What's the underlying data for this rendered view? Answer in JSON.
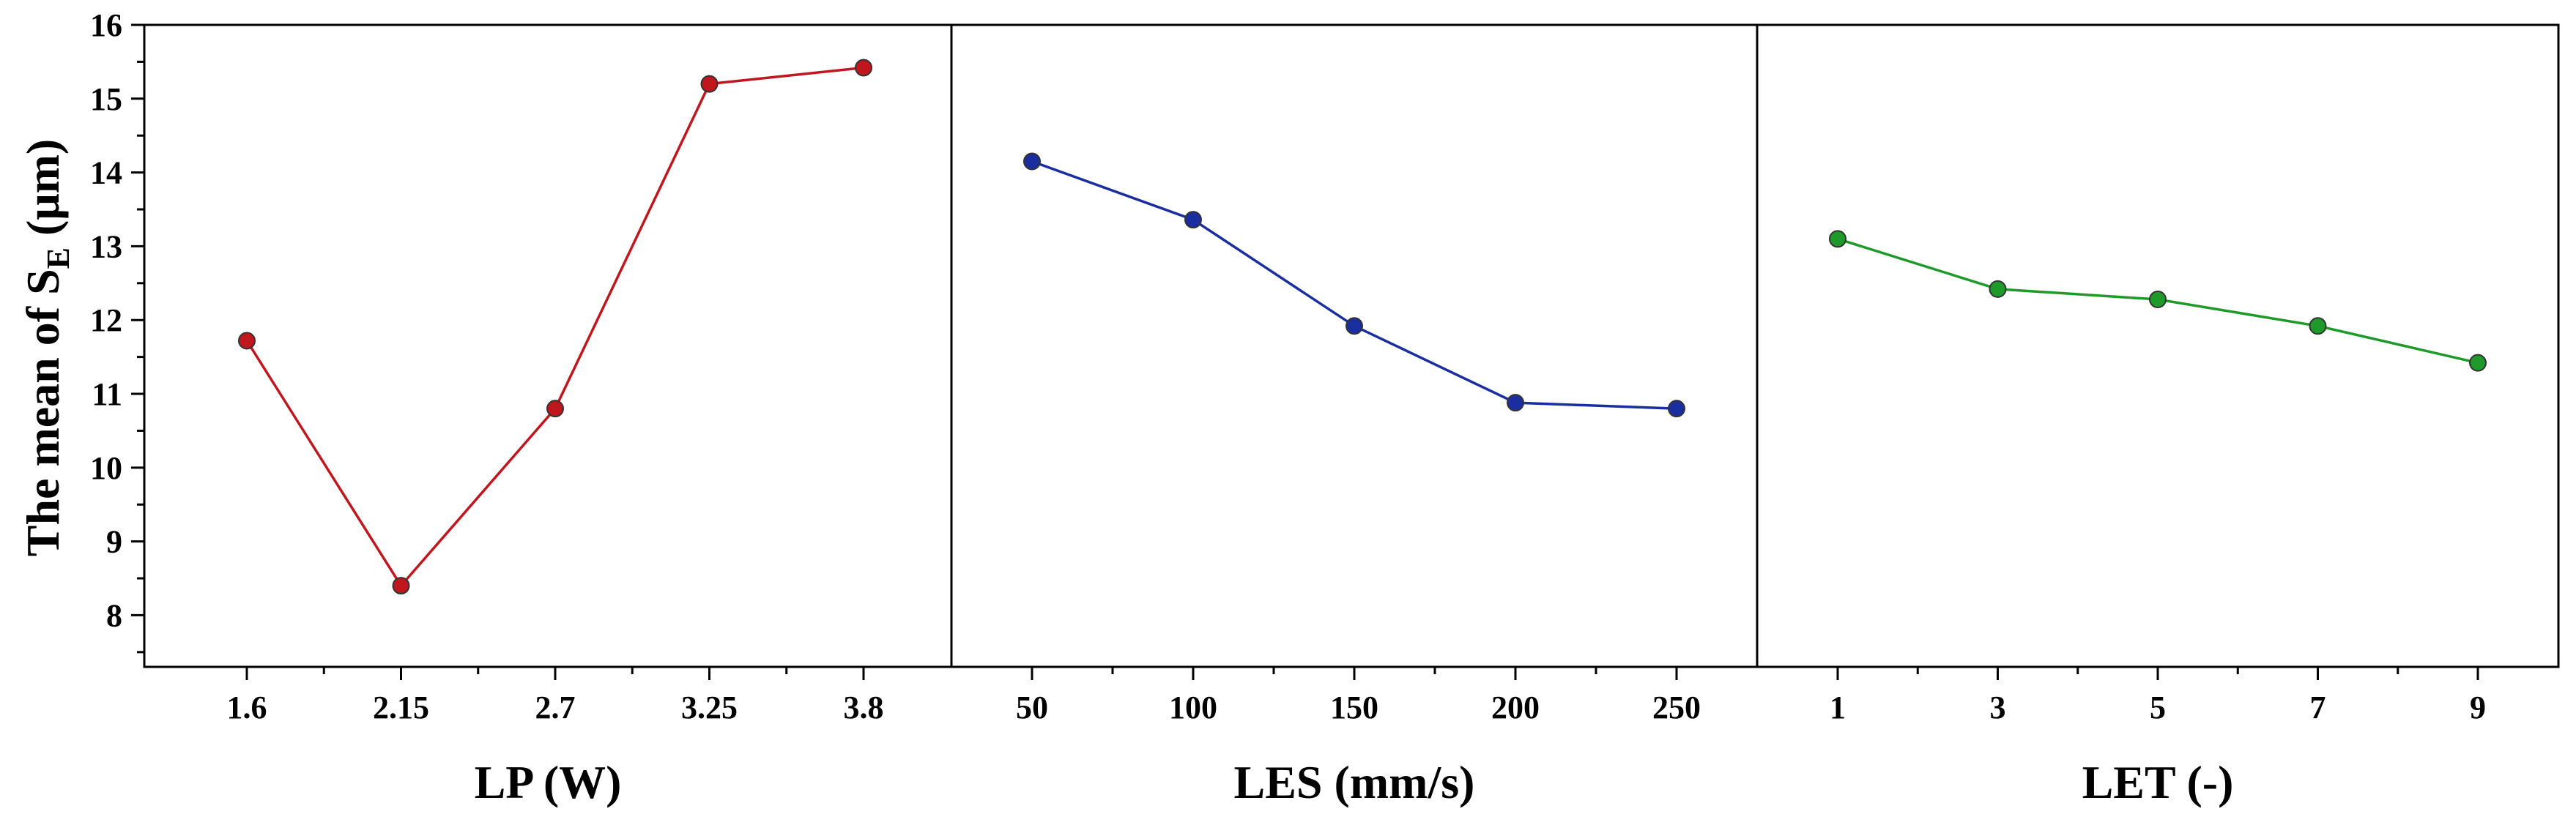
{
  "chart_data": {
    "type": "line",
    "ylabel": {
      "prefix": "The mean of S",
      "subscript": "E",
      "suffix": " (μm)"
    },
    "ylim": [
      7.3,
      16
    ],
    "yticks": [
      8,
      9,
      10,
      11,
      12,
      13,
      14,
      15,
      16
    ],
    "ytick_labels": [
      "8",
      "9",
      "10",
      "11",
      "12",
      "13",
      "14",
      "15",
      "16"
    ],
    "panels": [
      {
        "xlabel": "LP (W)",
        "categories": [
          "1.6",
          "2.15",
          "2.7",
          "3.25",
          "3.8"
        ],
        "values": [
          11.72,
          8.4,
          10.8,
          15.2,
          15.42
        ],
        "color": "#c0161e"
      },
      {
        "xlabel": "LES (mm/s)",
        "categories": [
          "50",
          "100",
          "150",
          "200",
          "250"
        ],
        "values": [
          14.15,
          13.36,
          11.92,
          10.88,
          10.8
        ],
        "color": "#1a2ea0"
      },
      {
        "xlabel": "LET (-)",
        "categories": [
          "1",
          "3",
          "5",
          "7",
          "9"
        ],
        "values": [
          13.1,
          12.42,
          12.28,
          11.92,
          11.42
        ],
        "color": "#1f9a2a"
      }
    ]
  }
}
